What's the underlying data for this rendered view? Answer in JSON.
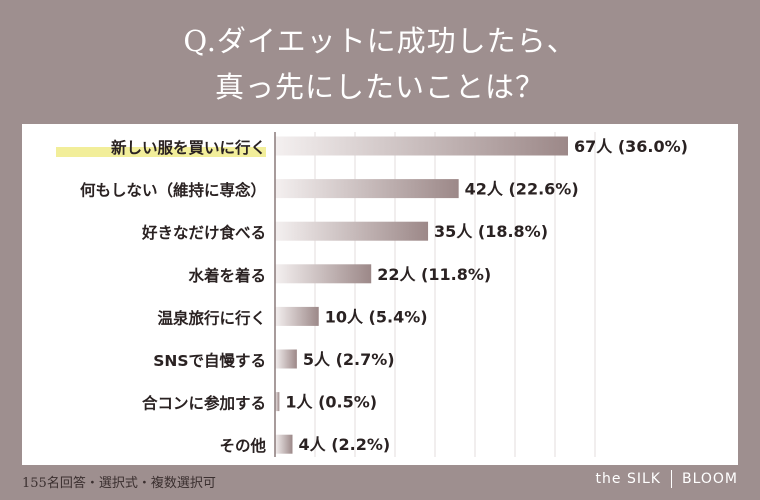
{
  "title_line1": "Q.ダイエットに成功したら、",
  "title_line2": "真っ先にしたいことは？",
  "footnote": "155名回答・選択式・複数選択可",
  "brand": {
    "left": "the SILK",
    "right": "BLOOM"
  },
  "colors": {
    "background": "#9e8f8f",
    "bar_dark": "#9c8888",
    "bar_light": "#f4f0f0",
    "highlight": "#f2ee9a",
    "text": "#2a2222",
    "grid": "#e3dcdc"
  },
  "chart_data": {
    "type": "bar",
    "orientation": "horizontal",
    "categories": [
      "新しい服を買いに行く",
      "何もしない（維持に専念）",
      "好きなだけ食べる",
      "水着を着る",
      "温泉旅行に行く",
      "SNSで自慢する",
      "合コンに参加する",
      "その他"
    ],
    "values": [
      67,
      42,
      35,
      22,
      10,
      5,
      1,
      4
    ],
    "data_labels": [
      "67人 (36.0%)",
      "42人 (22.6%)",
      "35人 (18.8%)",
      "22人 (11.8%)",
      "10人 (5.4%)",
      "5人 (2.7%)",
      "1人 (0.5%)",
      "4人 (2.2%)"
    ],
    "highlighted_category": "新しい服を買いに行く",
    "xlim": [
      0,
      67
    ],
    "grid": true,
    "legend": "none"
  }
}
